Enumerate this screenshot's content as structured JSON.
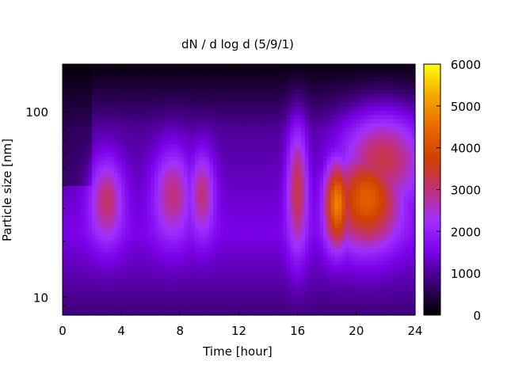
{
  "chart_data": {
    "type": "heatmap",
    "title": "dN / d log d (5/9/1)",
    "xlabel": "Time [hour]",
    "ylabel": "Particle size [nm]",
    "xlim": [
      0,
      24
    ],
    "ylim": [
      8,
      180
    ],
    "y_scale": "log",
    "x_ticks": [
      0,
      4,
      8,
      12,
      16,
      20,
      24
    ],
    "y_ticks": [
      10,
      100
    ],
    "colorbar": {
      "range": [
        0,
        6000
      ],
      "ticks": [
        0,
        1000,
        2000,
        3000,
        4000,
        5000,
        6000
      ],
      "palette": [
        "#000000",
        "#3a0070",
        "#7a00e8",
        "#a030ff",
        "#c03078",
        "#d04000",
        "#e86a00",
        "#f5a800",
        "#ffff00"
      ]
    },
    "hotspots": [
      {
        "t": 3.0,
        "d_nm": 33,
        "dt": 0.8,
        "dlogd": 0.16,
        "value": 3100
      },
      {
        "t": 7.5,
        "d_nm": 36,
        "dt": 0.9,
        "dlogd": 0.17,
        "value": 3000
      },
      {
        "t": 9.5,
        "d_nm": 36,
        "dt": 0.6,
        "dlogd": 0.16,
        "value": 3000
      },
      {
        "t": 16.0,
        "d_nm": 38,
        "dt": 0.5,
        "dlogd": 0.24,
        "value": 3300
      },
      {
        "t": 18.7,
        "d_nm": 32,
        "dt": 0.6,
        "dlogd": 0.16,
        "value": 4800
      },
      {
        "t": 20.7,
        "d_nm": 34,
        "dt": 1.6,
        "dlogd": 0.18,
        "value": 4300
      },
      {
        "t": 21.8,
        "d_nm": 55,
        "dt": 2.0,
        "dlogd": 0.18,
        "value": 3300
      }
    ]
  }
}
